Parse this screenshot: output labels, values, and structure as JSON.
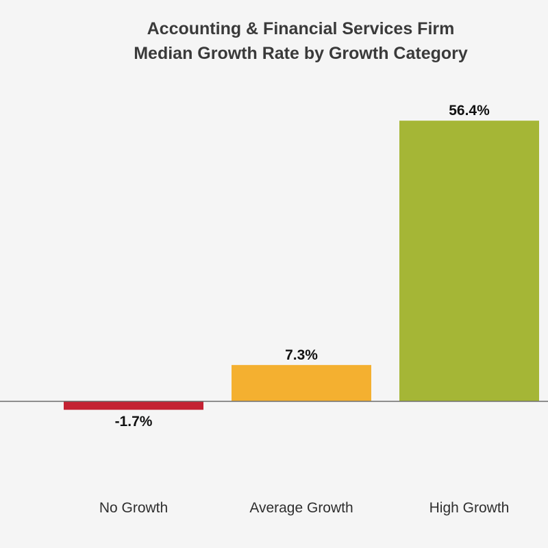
{
  "chart_data": {
    "type": "bar",
    "title": [
      "Accounting & Financial Services Firm",
      "Median Growth Rate by Growth Category"
    ],
    "categories": [
      "No Growth",
      "Average Growth",
      "High Growth"
    ],
    "values": [
      -1.7,
      7.3,
      56.4
    ],
    "value_labels": [
      "-1.7%",
      "7.3%",
      "56.4%"
    ],
    "colors": [
      "#c42233",
      "#f4b030",
      "#a5b636"
    ],
    "xlabel": "",
    "ylabel": "",
    "ylim": [
      -8,
      60
    ],
    "grid": false,
    "legend": "none",
    "zero_line": true
  }
}
